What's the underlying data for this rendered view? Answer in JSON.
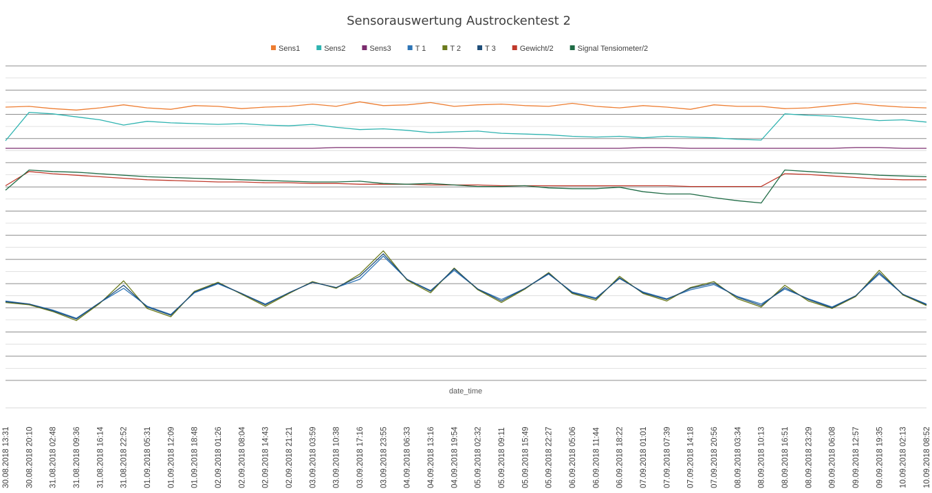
{
  "chart_data": {
    "type": "line",
    "title": "Sensorauswertung Austrockentest 2",
    "xlabel": "date_time",
    "ylabel": "",
    "legend_position": "top",
    "grid": true,
    "x_ticks": [
      "30.08.2018  13:31",
      "30.08.2018  20:10",
      "31.08.2018  02:48",
      "31.08.2018  09:36",
      "31.08.2018  16:14",
      "31.08.2018  22:52",
      "01.09.2018  05:31",
      "01.09.2018  12:09",
      "01.09.2018  18:48",
      "02.09.2018  01:26",
      "02.09.2018  08:04",
      "02.09.2018  14:43",
      "02.09.2018  21:21",
      "03.09.2018  03:59",
      "03.09.2018  10:38",
      "03.09.2018  17:16",
      "03.09.2018  23:55",
      "04.09.2018  06:33",
      "04.09.2018  13:16",
      "04.09.2018  19:54",
      "05.09.2018  02:32",
      "05.09.2018  09:11",
      "05.09.2018  15:49",
      "05.09.2018  22:27",
      "06.09.2018  05:06",
      "06.09.2018  11:44",
      "06.09.2018  18:22",
      "07.09.2018  01:01",
      "07.09.2018  07:39",
      "07.09.2018  14:18",
      "07.09.2018  20:56",
      "08.09.2018  03:34",
      "08.09.2018  10:13",
      "08.09.2018  16:51",
      "08.09.2018  23:29",
      "09.09.2018  06:08",
      "09.09.2018  12:57",
      "09.09.2018  19:35",
      "10.09.2018  02:13",
      "10.09.2018  08:52"
    ],
    "series": [
      {
        "name": "Sens1",
        "color": "#ED7D31",
        "values": [
          16.5,
          16.6,
          16.3,
          16.1,
          16.4,
          16.8,
          16.4,
          16.2,
          16.7,
          16.6,
          16.3,
          16.5,
          16.6,
          16.9,
          16.6,
          17.2,
          16.7,
          16.8,
          17.1,
          16.6,
          16.8,
          16.9,
          16.7,
          16.6,
          17.0,
          16.6,
          16.4,
          16.7,
          16.5,
          16.2,
          16.8,
          16.6,
          16.6,
          16.3,
          16.4,
          16.7,
          17.0,
          16.7,
          16.5,
          16.4
        ]
      },
      {
        "name": "Sens2",
        "color": "#2EB3B0",
        "values": [
          12.0,
          15.8,
          15.6,
          15.2,
          14.8,
          14.1,
          14.6,
          14.4,
          14.3,
          14.2,
          14.3,
          14.1,
          14.0,
          14.2,
          13.8,
          13.5,
          13.6,
          13.4,
          13.1,
          13.2,
          13.3,
          13.0,
          12.9,
          12.8,
          12.6,
          12.5,
          12.6,
          12.4,
          12.6,
          12.5,
          12.4,
          12.2,
          12.1,
          15.6,
          15.4,
          15.3,
          15.0,
          14.7,
          14.8,
          14.5
        ]
      },
      {
        "name": "Sens3",
        "color": "#7B2C6E",
        "values": [
          11.0,
          11.0,
          11.0,
          11.0,
          11.0,
          11.0,
          11.0,
          11.0,
          11.0,
          11.0,
          11.0,
          11.0,
          11.0,
          11.0,
          11.1,
          11.1,
          11.1,
          11.1,
          11.1,
          11.1,
          11.0,
          11.0,
          11.0,
          11.0,
          11.0,
          11.0,
          11.0,
          11.1,
          11.1,
          11.0,
          11.0,
          11.0,
          11.0,
          11.0,
          11.0,
          11.0,
          11.1,
          11.1,
          11.0,
          11.0
        ]
      },
      {
        "name": "T 1",
        "color": "#2E75B6",
        "values": [
          -9.4,
          -9.8,
          -10.6,
          -11.7,
          -9.6,
          -7.7,
          -10.1,
          -11.2,
          -8.3,
          -7.1,
          -8.4,
          -9.8,
          -8.3,
          -6.9,
          -7.6,
          -6.5,
          -3.4,
          -6.5,
          -8.0,
          -5.3,
          -7.8,
          -9.2,
          -7.7,
          -5.8,
          -8.2,
          -9.0,
          -6.4,
          -8.2,
          -9.1,
          -7.9,
          -7.2,
          -8.8,
          -9.8,
          -7.8,
          -9.1,
          -10.2,
          -8.7,
          -5.8,
          -8.5,
          -9.8
        ]
      },
      {
        "name": "T 2",
        "color": "#6B7A1C",
        "values": [
          -9.6,
          -9.9,
          -10.8,
          -12.0,
          -9.7,
          -6.7,
          -10.4,
          -11.5,
          -8.1,
          -6.9,
          -8.5,
          -10.1,
          -8.4,
          -6.8,
          -7.7,
          -5.8,
          -2.7,
          -6.6,
          -8.3,
          -5.0,
          -7.9,
          -9.6,
          -7.8,
          -5.6,
          -8.4,
          -9.3,
          -6.1,
          -8.4,
          -9.4,
          -7.6,
          -6.8,
          -9.1,
          -10.2,
          -7.3,
          -9.4,
          -10.4,
          -8.8,
          -5.3,
          -8.6,
          -10.0
        ]
      },
      {
        "name": "T 3",
        "color": "#1F4E79",
        "values": [
          -9.5,
          -9.8,
          -10.7,
          -11.8,
          -9.6,
          -7.3,
          -10.2,
          -11.3,
          -8.2,
          -7.0,
          -8.4,
          -9.9,
          -8.3,
          -6.9,
          -7.6,
          -6.1,
          -3.1,
          -6.5,
          -8.1,
          -5.1,
          -7.8,
          -9.4,
          -7.7,
          -5.7,
          -8.3,
          -9.1,
          -6.3,
          -8.3,
          -9.2,
          -7.7,
          -7.0,
          -8.9,
          -10.0,
          -7.6,
          -9.2,
          -10.3,
          -8.7,
          -5.6,
          -8.5,
          -9.9
        ]
      },
      {
        "name": "Gewicht/2",
        "color": "#C0392B",
        "values": [
          6.0,
          7.9,
          7.6,
          7.4,
          7.2,
          7.0,
          6.8,
          6.7,
          6.6,
          6.5,
          6.5,
          6.4,
          6.4,
          6.3,
          6.3,
          6.2,
          6.2,
          6.2,
          6.1,
          6.1,
          6.1,
          6.0,
          6.0,
          6.0,
          6.0,
          6.0,
          6.0,
          6.0,
          6.0,
          5.9,
          5.9,
          5.9,
          5.9,
          7.6,
          7.5,
          7.3,
          7.1,
          6.9,
          6.8,
          6.8
        ]
      },
      {
        "name": "Signal Tensiometer/2",
        "color": "#1F6B45",
        "values": [
          5.4,
          8.1,
          7.9,
          7.8,
          7.6,
          7.4,
          7.2,
          7.1,
          7.0,
          6.9,
          6.8,
          6.7,
          6.6,
          6.5,
          6.5,
          6.6,
          6.3,
          6.2,
          6.3,
          6.1,
          5.9,
          5.9,
          6.0,
          5.7,
          5.6,
          5.6,
          5.8,
          5.2,
          4.9,
          4.9,
          4.4,
          4.0,
          3.7,
          8.1,
          7.9,
          7.7,
          7.6,
          7.4,
          7.3,
          7.2
        ]
      }
    ],
    "ylim": [
      -20,
      22
    ]
  }
}
